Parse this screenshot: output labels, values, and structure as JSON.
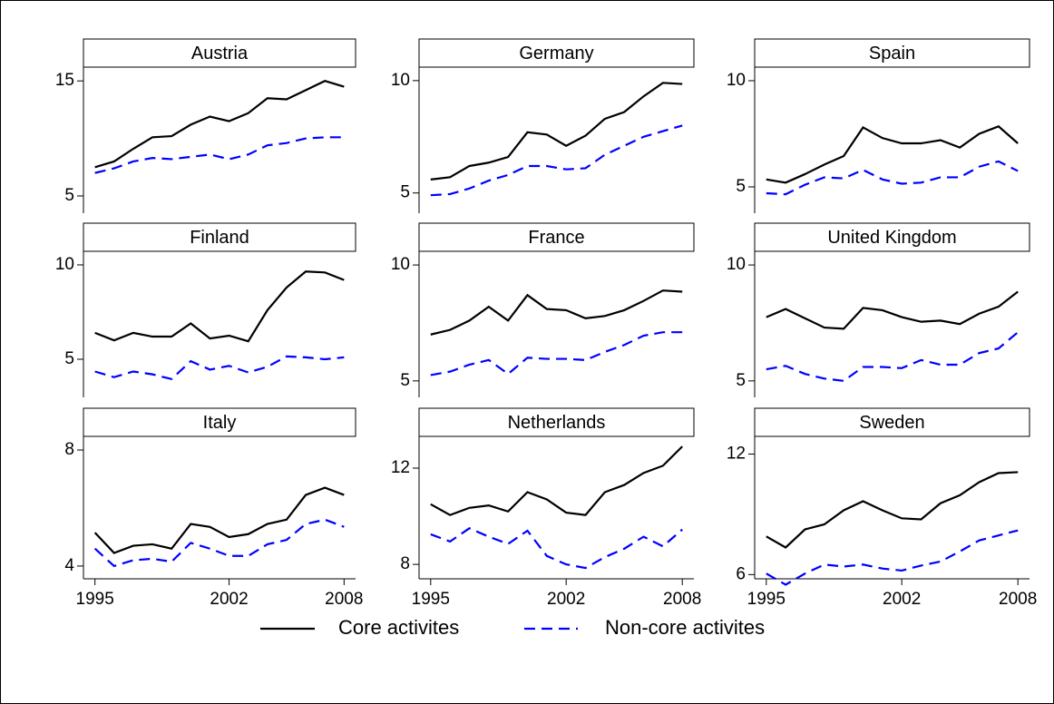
{
  "chart_data": [
    {
      "type": "line",
      "title": "Austria",
      "x": [
        1995,
        1996,
        1997,
        1998,
        1999,
        2000,
        2001,
        2002,
        2003,
        2004,
        2005,
        2006,
        2007,
        2008
      ],
      "xlim": [
        1994.4,
        2008.6
      ],
      "ylim": [
        3.5,
        16.2
      ],
      "yticks": [
        5,
        15
      ],
      "series": [
        {
          "name": "Core activites",
          "color": "#000000",
          "values": [
            7.5,
            8.0,
            9.1,
            10.1,
            10.2,
            11.2,
            11.9,
            11.5,
            12.2,
            13.5,
            13.4,
            14.2,
            15.0,
            14.5
          ]
        },
        {
          "name": "Non-core activites",
          "color": "#0000ff",
          "values": [
            7.0,
            7.4,
            8.0,
            8.3,
            8.2,
            8.4,
            8.6,
            8.2,
            8.6,
            9.4,
            9.6,
            10.0,
            10.1,
            10.1
          ]
        }
      ]
    },
    {
      "type": "line",
      "title": "Germany",
      "x": [
        1995,
        1996,
        1997,
        1998,
        1999,
        2000,
        2001,
        2002,
        2003,
        2004,
        2005,
        2006,
        2007,
        2008
      ],
      "xlim": [
        1994.4,
        2008.6
      ],
      "ylim": [
        4.1,
        10.6
      ],
      "yticks": [
        5,
        10
      ],
      "series": [
        {
          "name": "Core activites",
          "color": "#000000",
          "values": [
            5.6,
            5.7,
            6.2,
            6.35,
            6.6,
            7.7,
            7.6,
            7.1,
            7.55,
            8.3,
            8.6,
            9.3,
            9.9,
            9.85
          ]
        },
        {
          "name": "Non-core activites",
          "color": "#0000ff",
          "values": [
            4.9,
            4.95,
            5.2,
            5.55,
            5.8,
            6.2,
            6.2,
            6.05,
            6.1,
            6.7,
            7.1,
            7.5,
            7.75,
            8.0
          ]
        }
      ]
    },
    {
      "type": "line",
      "title": "Spain",
      "x": [
        1995,
        1996,
        1997,
        1998,
        1999,
        2000,
        2001,
        2002,
        2003,
        2004,
        2005,
        2006,
        2007,
        2008
      ],
      "xlim": [
        1994.4,
        2008.6
      ],
      "ylim": [
        3.76,
        10.64
      ],
      "yticks": [
        5,
        10
      ],
      "series": [
        {
          "name": "Core activites",
          "color": "#000000",
          "values": [
            5.35,
            5.2,
            5.6,
            6.05,
            6.45,
            7.8,
            7.3,
            7.05,
            7.05,
            7.2,
            6.85,
            7.5,
            7.85,
            7.05
          ]
        },
        {
          "name": "Non-core activites",
          "color": "#0000ff",
          "values": [
            4.7,
            4.65,
            5.1,
            5.45,
            5.4,
            5.8,
            5.35,
            5.15,
            5.2,
            5.45,
            5.45,
            5.95,
            6.2,
            5.75
          ]
        }
      ]
    },
    {
      "type": "line",
      "title": "Finland",
      "x": [
        1995,
        1996,
        1997,
        1998,
        1999,
        2000,
        2001,
        2002,
        2003,
        2004,
        2005,
        2006,
        2007,
        2008
      ],
      "xlim": [
        1994.4,
        2008.6
      ],
      "ylim": [
        2.98,
        10.72
      ],
      "yticks": [
        5,
        10
      ],
      "series": [
        {
          "name": "Core activites",
          "color": "#000000",
          "values": [
            6.4,
            6.0,
            6.4,
            6.2,
            6.2,
            6.9,
            6.1,
            6.25,
            5.95,
            7.6,
            8.8,
            9.65,
            9.6,
            9.2
          ]
        },
        {
          "name": "Non-core activites",
          "color": "#0000ff",
          "values": [
            4.35,
            4.05,
            4.35,
            4.2,
            3.95,
            4.9,
            4.45,
            4.65,
            4.3,
            4.6,
            5.15,
            5.1,
            5.0,
            5.1
          ]
        }
      ]
    },
    {
      "type": "line",
      "title": "France",
      "x": [
        1995,
        1996,
        1997,
        1998,
        1999,
        2000,
        2001,
        2002,
        2003,
        2004,
        2005,
        2006,
        2007,
        2008
      ],
      "xlim": [
        1994.4,
        2008.6
      ],
      "ylim": [
        4.29,
        10.59
      ],
      "yticks": [
        5,
        10
      ],
      "series": [
        {
          "name": "Core activites",
          "color": "#000000",
          "values": [
            7.0,
            7.2,
            7.6,
            8.2,
            7.6,
            8.7,
            8.1,
            8.05,
            7.7,
            7.8,
            8.05,
            8.45,
            8.9,
            8.85
          ]
        },
        {
          "name": "Non-core activites",
          "color": "#0000ff",
          "values": [
            5.25,
            5.4,
            5.7,
            5.9,
            5.3,
            6.0,
            5.95,
            5.95,
            5.9,
            6.25,
            6.55,
            6.95,
            7.1,
            7.1
          ]
        }
      ]
    },
    {
      "type": "line",
      "title": "United Kingdom",
      "x": [
        1995,
        1996,
        1997,
        1998,
        1999,
        2000,
        2001,
        2002,
        2003,
        2004,
        2005,
        2006,
        2007,
        2008
      ],
      "xlim": [
        1994.4,
        2008.6
      ],
      "ylim": [
        4.29,
        10.59
      ],
      "yticks": [
        5,
        10
      ],
      "series": [
        {
          "name": "Core activites",
          "color": "#000000",
          "values": [
            7.75,
            8.1,
            7.7,
            7.3,
            7.25,
            8.15,
            8.05,
            7.75,
            7.55,
            7.6,
            7.45,
            7.9,
            8.2,
            8.85
          ]
        },
        {
          "name": "Non-core activites",
          "color": "#0000ff",
          "values": [
            5.5,
            5.65,
            5.3,
            5.1,
            5.0,
            5.6,
            5.6,
            5.55,
            5.9,
            5.7,
            5.7,
            6.2,
            6.4,
            7.1
          ]
        }
      ]
    },
    {
      "type": "line",
      "title": "Italy",
      "x": [
        1995,
        1996,
        1997,
        1998,
        1999,
        2000,
        2001,
        2002,
        2003,
        2004,
        2005,
        2006,
        2007,
        2008
      ],
      "xlim": [
        1994.4,
        2008.6
      ],
      "xticks": [
        1995,
        2002,
        2008
      ],
      "ylim": [
        3.56,
        8.47
      ],
      "yticks": [
        4,
        8
      ],
      "series": [
        {
          "name": "Core activites",
          "color": "#000000",
          "values": [
            5.15,
            4.45,
            4.7,
            4.75,
            4.6,
            5.45,
            5.35,
            5.0,
            5.1,
            5.45,
            5.6,
            6.45,
            6.7,
            6.45
          ]
        },
        {
          "name": "Non-core activites",
          "color": "#0000ff",
          "values": [
            4.6,
            4.0,
            4.2,
            4.25,
            4.15,
            4.8,
            4.6,
            4.35,
            4.35,
            4.75,
            4.9,
            5.45,
            5.6,
            5.35
          ]
        }
      ]
    },
    {
      "type": "line",
      "title": "Netherlands",
      "x": [
        1995,
        1996,
        1997,
        1998,
        1999,
        2000,
        2001,
        2002,
        2003,
        2004,
        2005,
        2006,
        2007,
        2008
      ],
      "xlim": [
        1994.4,
        2008.6
      ],
      "xticks": [
        1995,
        2002,
        2008
      ],
      "ylim": [
        7.4,
        13.32
      ],
      "yticks": [
        8,
        12
      ],
      "series": [
        {
          "name": "Core activites",
          "color": "#000000",
          "values": [
            10.5,
            10.05,
            10.35,
            10.45,
            10.2,
            11.0,
            10.7,
            10.15,
            10.05,
            11.0,
            11.3,
            11.8,
            12.1,
            12.9
          ]
        },
        {
          "name": "Non-core activites",
          "color": "#0000ff",
          "values": [
            9.25,
            8.95,
            9.5,
            9.15,
            8.85,
            9.4,
            8.35,
            8.0,
            7.85,
            8.3,
            8.65,
            9.15,
            8.75,
            9.45
          ]
        }
      ]
    },
    {
      "type": "line",
      "title": "Sweden",
      "x": [
        1995,
        1996,
        1997,
        1998,
        1999,
        2000,
        2001,
        2002,
        2003,
        2004,
        2005,
        2006,
        2007,
        2008
      ],
      "xlim": [
        1994.4,
        2008.6
      ],
      "xticks": [
        1995,
        2002,
        2008
      ],
      "ylim": [
        5.79,
        12.88
      ],
      "yticks": [
        6,
        12
      ],
      "series": [
        {
          "name": "Core activites",
          "color": "#000000",
          "values": [
            7.9,
            7.35,
            8.25,
            8.5,
            9.2,
            9.65,
            9.2,
            8.8,
            8.75,
            9.55,
            9.95,
            10.6,
            11.05,
            11.1
          ]
        },
        {
          "name": "Non-core activites",
          "color": "#0000ff",
          "values": [
            6.05,
            5.5,
            6.05,
            6.5,
            6.4,
            6.5,
            6.3,
            6.2,
            6.45,
            6.65,
            7.15,
            7.7,
            7.95,
            8.2
          ]
        }
      ]
    }
  ]
}
